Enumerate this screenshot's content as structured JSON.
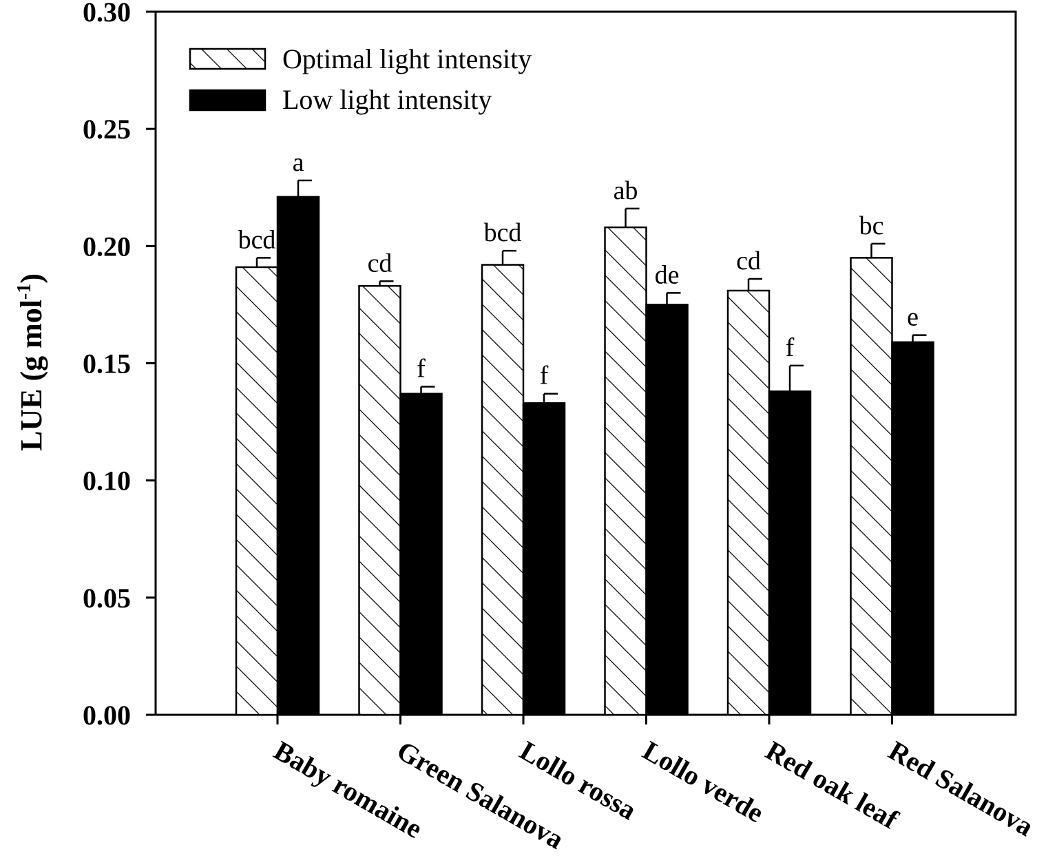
{
  "chart_data": {
    "type": "bar",
    "title": "",
    "xlabel": "",
    "ylabel": "LUE (g mol",
    "ylabel_superscript": "-1",
    "ylabel_suffix": ")",
    "ylim": [
      0,
      0.3
    ],
    "yticks": [
      "0.00",
      "0.05",
      "0.10",
      "0.15",
      "0.20",
      "0.25",
      "0.30"
    ],
    "categories": [
      "Baby romaine",
      "Green Salanova",
      "Lollo rossa",
      "Lollo verde",
      "Red oak leaf",
      "Red Salanova"
    ],
    "series": [
      {
        "name": "Optimal light intensity",
        "pattern": "hatched",
        "values": [
          0.191,
          0.183,
          0.192,
          0.208,
          0.181,
          0.195
        ],
        "errors": [
          0.004,
          0.002,
          0.006,
          0.008,
          0.005,
          0.006
        ],
        "letters": [
          "bcd",
          "cd",
          "bcd",
          "ab",
          "cd",
          "bc"
        ]
      },
      {
        "name": "Low light intensity",
        "pattern": "solid",
        "values": [
          0.221,
          0.137,
          0.133,
          0.175,
          0.138,
          0.159
        ],
        "errors": [
          0.007,
          0.003,
          0.004,
          0.005,
          0.011,
          0.003
        ],
        "letters": [
          "a",
          "f",
          "f",
          "de",
          "f",
          "e"
        ]
      }
    ],
    "legend_position": "top-left",
    "grid": false,
    "colors": {
      "hatched_fill": "#ffffff",
      "solid_fill": "#000000",
      "stroke": "#000000"
    }
  }
}
